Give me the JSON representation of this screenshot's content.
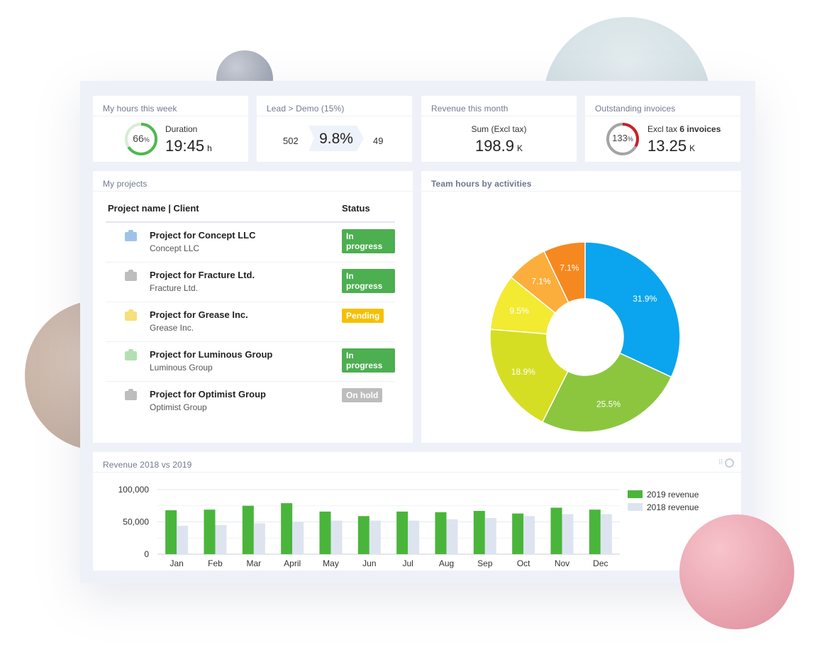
{
  "kpis": {
    "hours": {
      "title": "My hours this week",
      "percent": "66",
      "percent_sign": "%",
      "percent_value": 66,
      "label": "Duration",
      "value": "19:45",
      "unit": "h",
      "ring_color": "#4fb84f"
    },
    "lead": {
      "title": "Lead > Demo (15%)",
      "left": "502",
      "center": "9.8%",
      "right": "49"
    },
    "revenue": {
      "title": "Revenue this month",
      "label": "Sum (Excl tax)",
      "value": "198.9",
      "unit": "K"
    },
    "invoices": {
      "title": "Outstanding invoices",
      "percent": "133",
      "percent_sign": "%",
      "percent_value": 133,
      "label_prefix": "Excl tax",
      "label_bold": "6 invoices",
      "value": "13.25",
      "unit": "K",
      "ring_color": "#c6222a"
    }
  },
  "projects": {
    "title": "My projects",
    "headers": {
      "name": "Project name | Client",
      "status": "Status"
    },
    "rows": [
      {
        "name": "Project for Concept LLC",
        "client": "Concept LLC",
        "status": "In progress",
        "status_color": "#4caf50",
        "folder_color": "#9fc3e8"
      },
      {
        "name": "Project for Fracture Ltd.",
        "client": "Fracture Ltd.",
        "status": "In progress",
        "status_color": "#4caf50",
        "folder_color": "#bdbdbd"
      },
      {
        "name": "Project for Grease Inc.",
        "client": "Grease Inc.",
        "status": "Pending",
        "status_color": "#f6c000",
        "folder_color": "#f5e07a"
      },
      {
        "name": "Project for Luminous Group",
        "client": "Luminous Group",
        "status": "In progress",
        "status_color": "#4caf50",
        "folder_color": "#b3e0b3"
      },
      {
        "name": "Project for Optimist Group",
        "client": "Optimist Group",
        "status": "On hold",
        "status_color": "#bdbdbd",
        "folder_color": "#bdbdbd"
      }
    ]
  },
  "team_hours": {
    "title": "Team hours by activities",
    "chart_data": {
      "type": "pie",
      "values": [
        31.9,
        25.5,
        18.9,
        9.5,
        7.1,
        7.1
      ],
      "labels": [
        "31.9%",
        "25.5%",
        "18.9%",
        "9.5%",
        "7.1%",
        "7.1%"
      ],
      "colors": [
        "#0aa5ee",
        "#8cc63f",
        "#d5de22",
        "#f3ea32",
        "#fbae3b",
        "#f5891f"
      ],
      "donut": true
    }
  },
  "revenue_chart": {
    "title": "Revenue 2018 vs 2019",
    "chart_data": {
      "type": "bar",
      "categories": [
        "Jan",
        "Feb",
        "Mar",
        "April",
        "May",
        "Jun",
        "Jul",
        "Aug",
        "Sep",
        "Oct",
        "Nov",
        "Dec"
      ],
      "series": [
        {
          "name": "2019 revenue",
          "color": "#4ab53b",
          "values": [
            68000,
            69000,
            75000,
            79000,
            66000,
            59000,
            66000,
            65000,
            67000,
            63000,
            72000,
            69000
          ]
        },
        {
          "name": "2018 revenue",
          "color": "#dde4f0",
          "values": [
            44000,
            45000,
            48000,
            50000,
            52000,
            52000,
            52000,
            54000,
            56000,
            59000,
            62000,
            62000
          ]
        }
      ],
      "y_ticks": [
        "100,000",
        "50,000",
        "0"
      ],
      "y_tick_values": [
        100000,
        50000,
        0
      ],
      "ylim": [
        0,
        100000
      ],
      "legend_position": "right"
    }
  }
}
